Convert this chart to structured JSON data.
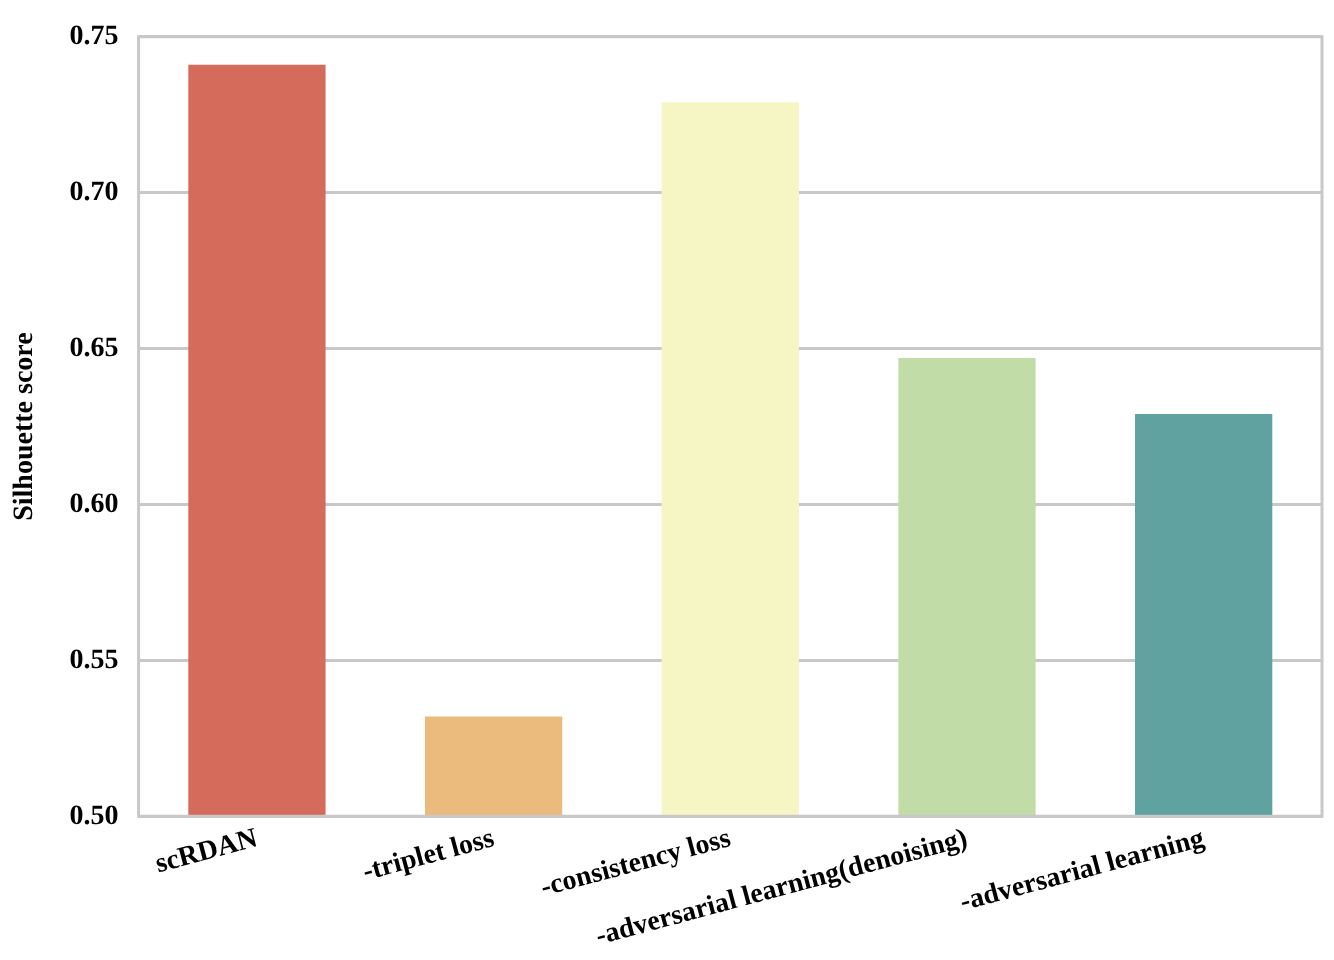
{
  "chart_data": {
    "type": "bar",
    "ylabel": "Silhouette score",
    "categories": [
      "scRDAN",
      "-triplet loss",
      "-consistency loss",
      "-adversarial learning(denoising)",
      "-adversarial learning"
    ],
    "values": [
      0.741,
      0.532,
      0.729,
      0.647,
      0.629
    ],
    "colors": [
      "#d56b5a",
      "#ebbb7d",
      "#f6f6c4",
      "#c1dca6",
      "#5fa2a0"
    ],
    "ylim": [
      0.5,
      0.75
    ],
    "yticks": [
      {
        "value": 0.5,
        "label": "0.50"
      },
      {
        "value": 0.55,
        "label": "0.55"
      },
      {
        "value": 0.6,
        "label": "0.60"
      },
      {
        "value": 0.65,
        "label": "0.65"
      },
      {
        "value": 0.7,
        "label": "0.70"
      },
      {
        "value": 0.75,
        "label": "0.75"
      }
    ],
    "grid": "y"
  }
}
